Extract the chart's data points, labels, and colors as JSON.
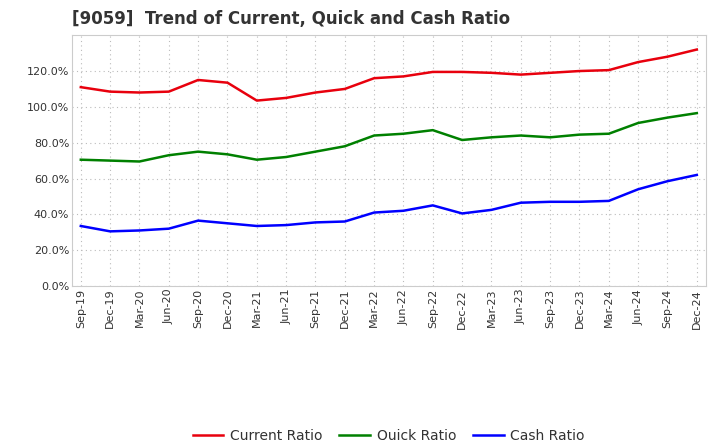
{
  "title": "[9059]  Trend of Current, Quick and Cash Ratio",
  "x_labels": [
    "Sep-19",
    "Dec-19",
    "Mar-20",
    "Jun-20",
    "Sep-20",
    "Dec-20",
    "Mar-21",
    "Jun-21",
    "Sep-21",
    "Dec-21",
    "Mar-22",
    "Jun-22",
    "Sep-22",
    "Dec-22",
    "Mar-23",
    "Jun-23",
    "Sep-23",
    "Dec-23",
    "Mar-24",
    "Jun-24",
    "Sep-24",
    "Dec-24"
  ],
  "current_ratio": [
    111.0,
    108.5,
    108.0,
    108.5,
    115.0,
    113.5,
    103.5,
    105.0,
    108.0,
    110.0,
    116.0,
    117.0,
    119.5,
    119.5,
    119.0,
    118.0,
    119.0,
    120.0,
    120.5,
    125.0,
    128.0,
    132.0
  ],
  "quick_ratio": [
    70.5,
    70.0,
    69.5,
    73.0,
    75.0,
    73.5,
    70.5,
    72.0,
    75.0,
    78.0,
    84.0,
    85.0,
    87.0,
    81.5,
    83.0,
    84.0,
    83.0,
    84.5,
    85.0,
    91.0,
    94.0,
    96.5
  ],
  "cash_ratio": [
    33.5,
    30.5,
    31.0,
    32.0,
    36.5,
    35.0,
    33.5,
    34.0,
    35.5,
    36.0,
    41.0,
    42.0,
    45.0,
    40.5,
    42.5,
    46.5,
    47.0,
    47.0,
    47.5,
    54.0,
    58.5,
    62.0
  ],
  "current_color": "#e8000d",
  "quick_color": "#008000",
  "cash_color": "#0000ff",
  "ylim": [
    0,
    140
  ],
  "yticks": [
    0,
    20,
    40,
    60,
    80,
    100,
    120
  ],
  "background_color": "#ffffff",
  "grid_color": "#bbbbbb",
  "title_fontsize": 12,
  "title_color": "#333333",
  "tick_fontsize": 8,
  "legend_fontsize": 10,
  "legend_labels": [
    "Current Ratio",
    "Quick Ratio",
    "Cash Ratio"
  ],
  "line_width": 1.8
}
